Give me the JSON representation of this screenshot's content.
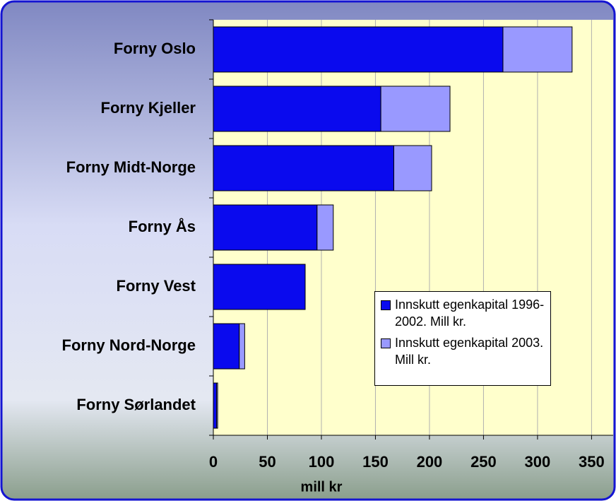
{
  "chart_data": {
    "type": "stacked-barh",
    "categories": [
      "Forny Oslo",
      "Forny Kjeller",
      "Forny Midt-Norge",
      "Forny Ås",
      "Forny Vest",
      "Forny Nord-Norge",
      "Forny Sørlandet"
    ],
    "series": [
      {
        "name": "Innskutt egenkapital 1996-2002. Mill kr.",
        "color": "#0a0aee",
        "values": [
          268,
          155,
          167,
          96,
          85,
          24,
          3
        ]
      },
      {
        "name": "Innskutt egenkapital 2003. Mill kr.",
        "color": "#9999ff",
        "values": [
          64,
          64,
          35,
          15,
          0,
          5,
          1
        ]
      }
    ],
    "xlabel": "mill kr",
    "xlim": [
      0,
      370
    ],
    "xticks": [
      0,
      50,
      100,
      150,
      200,
      250,
      300,
      350
    ],
    "grid": true
  }
}
